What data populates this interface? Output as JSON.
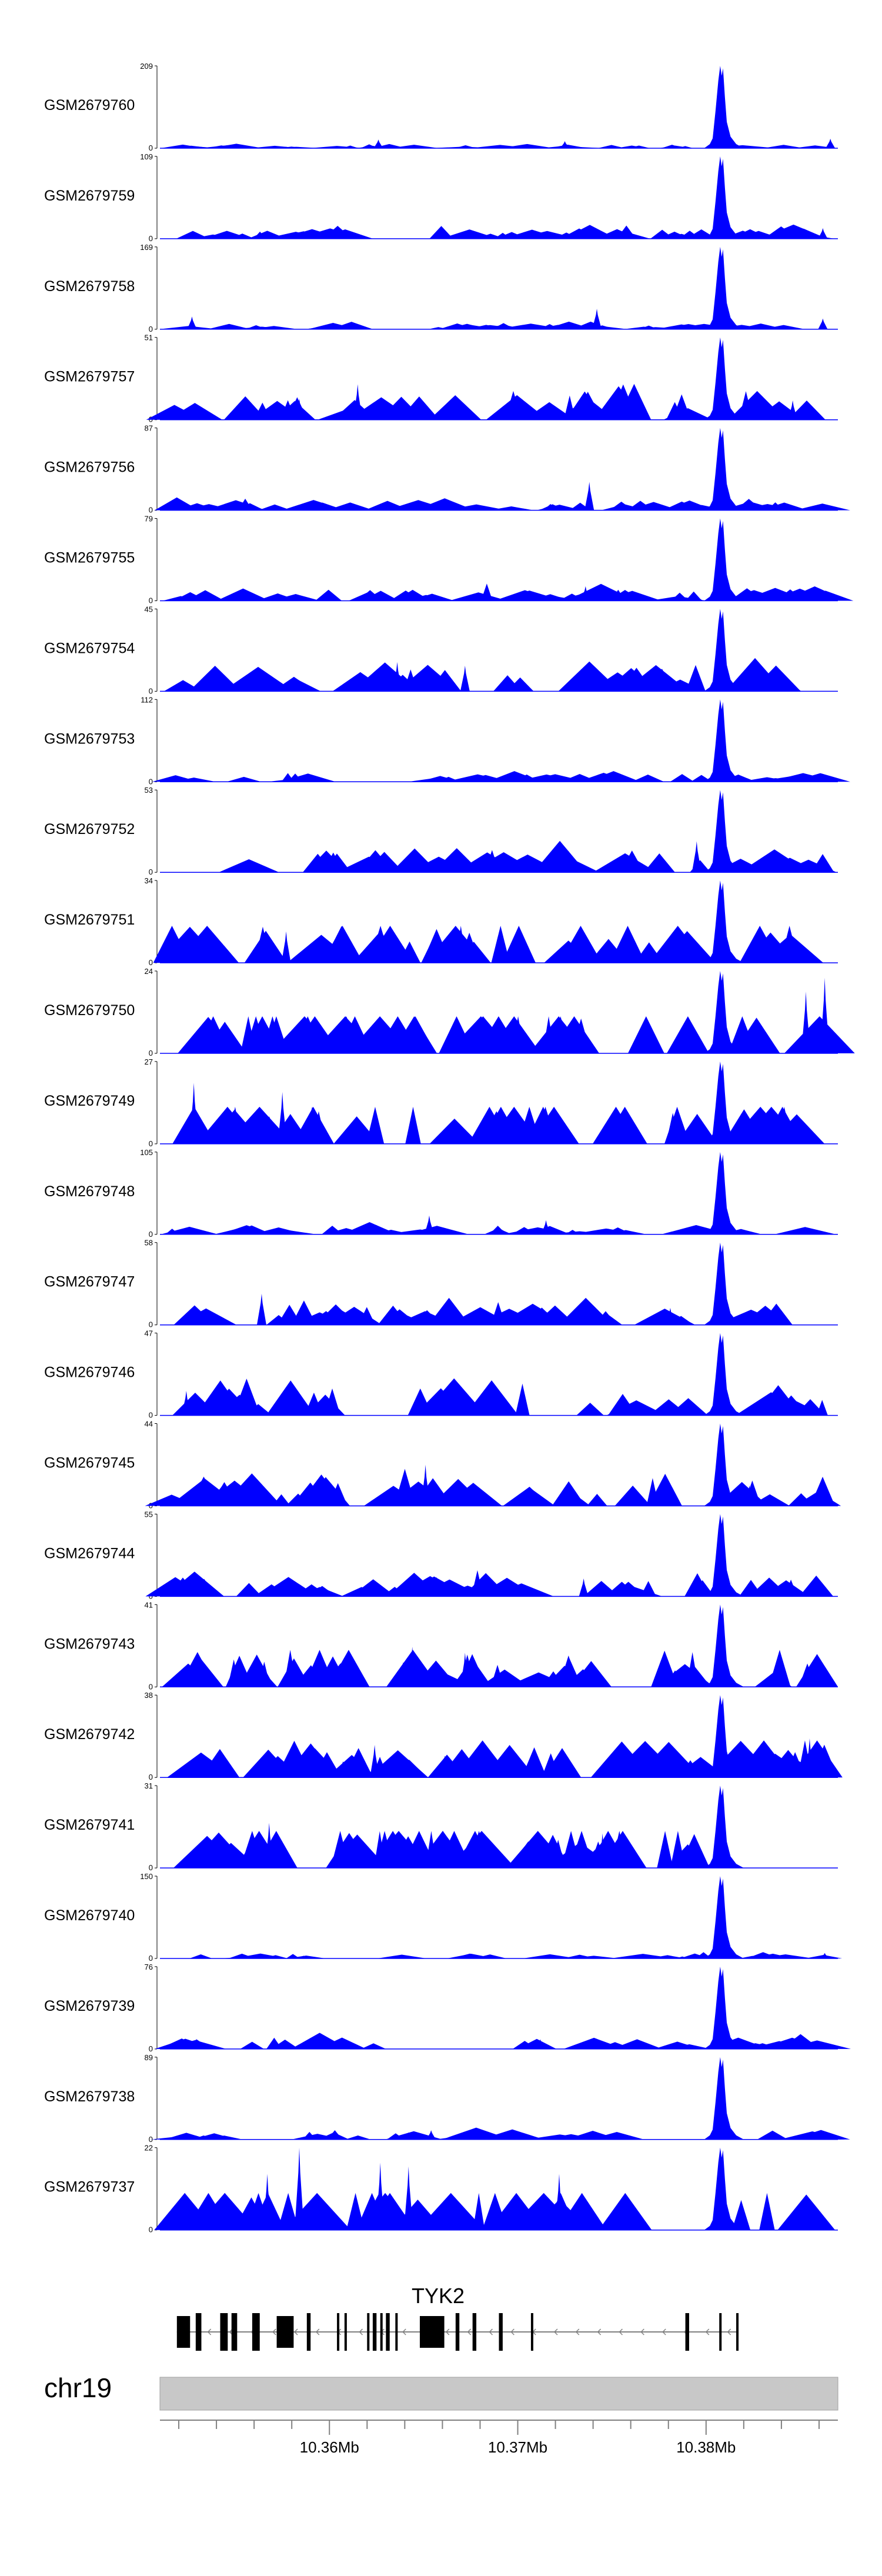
{
  "chart_data": {
    "type": "area",
    "title": "",
    "chromosome": "chr19",
    "gene": "TYK2",
    "xlim": [
      10.351,
      10.387
    ],
    "x_ticks": [
      10.352,
      10.354,
      10.356,
      10.358,
      10.36,
      10.362,
      10.364,
      10.366,
      10.368,
      10.37,
      10.372,
      10.374,
      10.376,
      10.378,
      10.38,
      10.382,
      10.384,
      10.386
    ],
    "x_tick_labels": [
      {
        "value": 10.36,
        "label": "10.36Mb"
      },
      {
        "value": 10.37,
        "label": "10.37Mb"
      },
      {
        "value": 10.38,
        "label": "10.38Mb"
      }
    ],
    "peak_position": 10.3808,
    "colors": {
      "signal": "#0000ff",
      "axis": "#000000",
      "ideogram": "#c8c8c8",
      "gene": "#000000",
      "intron": "#808080"
    },
    "tracks": [
      {
        "name": "GSM2679760",
        "ymax": "209",
        "ymin": "0",
        "peak": 209,
        "bg": [
          3,
          9
        ],
        "bumps": [
          [
            10.3626,
            22
          ],
          [
            10.3725,
            18
          ],
          [
            10.3866,
            24
          ]
        ]
      },
      {
        "name": "GSM2679759",
        "ymax": "109",
        "ymin": "0",
        "peak": 109,
        "bg": [
          5,
          14
        ],
        "bumps": [
          [
            10.3738,
            16
          ],
          [
            10.3862,
            14
          ]
        ]
      },
      {
        "name": "GSM2679758",
        "ymax": "169",
        "ymin": "0",
        "peak": 169,
        "bg": [
          4,
          12
        ],
        "bumps": [
          [
            10.3527,
            26
          ],
          [
            10.3742,
            42
          ],
          [
            10.3862,
            22
          ]
        ]
      },
      {
        "name": "GSM2679757",
        "ymax": "51",
        "ymin": "0",
        "peak": 51,
        "bg": [
          6,
          18
        ],
        "bumps": [
          [
            10.3584,
            13
          ],
          [
            10.3615,
            22
          ],
          [
            10.3846,
            12
          ]
        ]
      },
      {
        "name": "GSM2679756",
        "ymax": "87",
        "ymin": "0",
        "peak": 87,
        "bg": [
          4,
          13
        ],
        "bumps": [
          [
            10.3738,
            30
          ]
        ]
      },
      {
        "name": "GSM2679755",
        "ymax": "79",
        "ymin": "0",
        "peak": 79,
        "bg": [
          4,
          12
        ],
        "bumps": [
          [
            10.3736,
            14
          ]
        ]
      },
      {
        "name": "GSM2679754",
        "ymax": "45",
        "ymin": "0",
        "peak": 45,
        "bg": [
          6,
          15
        ],
        "bumps": [
          [
            10.3636,
            16
          ],
          [
            10.3672,
            14
          ]
        ]
      },
      {
        "name": "GSM2679753",
        "ymax": "112",
        "ymin": "0",
        "peak": 112,
        "bg": [
          4,
          12
        ],
        "bumps": [
          [
            10.3733,
            10
          ]
        ]
      },
      {
        "name": "GSM2679752",
        "ymax": "53",
        "ymin": "0",
        "peak": 53,
        "bg": [
          6,
          15
        ],
        "bumps": [
          [
            10.3727,
            14
          ],
          [
            10.3795,
            20
          ]
        ]
      },
      {
        "name": "GSM2679751",
        "ymax": "34",
        "ymin": "0",
        "peak": 34,
        "bg": [
          8,
          19
        ],
        "bumps": [
          [
            10.3577,
            13
          ],
          [
            10.3833,
            9
          ]
        ]
      },
      {
        "name": "GSM2679750",
        "ymax": "24",
        "ymin": "0",
        "peak": 24,
        "bg": [
          8,
          22
        ],
        "bumps": [
          [
            10.3863,
            22
          ],
          [
            10.3853,
            18
          ]
        ]
      },
      {
        "name": "GSM2679749",
        "ymax": "27",
        "ymin": "0",
        "peak": 27,
        "bg": [
          8,
          22
        ],
        "bumps": [
          [
            10.3528,
            20
          ],
          [
            10.3575,
            17
          ]
        ]
      },
      {
        "name": "GSM2679748",
        "ymax": "105",
        "ymin": "0",
        "peak": 105,
        "bg": [
          4,
          12
        ],
        "bumps": [
          [
            10.3653,
            24
          ],
          [
            10.3715,
            18
          ]
        ]
      },
      {
        "name": "GSM2679747",
        "ymax": "58",
        "ymin": "0",
        "peak": 58,
        "bg": [
          6,
          15
        ],
        "bumps": [
          [
            10.3564,
            22
          ],
          [
            10.3781,
            12
          ]
        ]
      },
      {
        "name": "GSM2679746",
        "ymax": "47",
        "ymin": "0",
        "peak": 47,
        "bg": [
          6,
          16
        ],
        "bumps": [
          [
            10.3524,
            14
          ],
          [
            10.3558,
            13
          ]
        ]
      },
      {
        "name": "GSM2679745",
        "ymax": "44",
        "ymin": "0",
        "peak": 44,
        "bg": [
          6,
          16
        ],
        "bumps": [
          [
            10.3651,
            22
          ],
          [
            10.3823,
            11
          ]
        ]
      },
      {
        "name": "GSM2679744",
        "ymax": "55",
        "ymin": "0",
        "peak": 55,
        "bg": [
          6,
          14
        ],
        "bumps": [
          [
            10.3657,
            13
          ],
          [
            10.3735,
            12
          ]
        ]
      },
      {
        "name": "GSM2679743",
        "ymax": "41",
        "ymin": "0",
        "peak": 41,
        "bg": [
          7,
          18
        ],
        "bumps": [
          [
            10.3644,
            20
          ],
          [
            10.3672,
            17
          ]
        ]
      },
      {
        "name": "GSM2679742",
        "ymax": "38",
        "ymin": "0",
        "peak": 38,
        "bg": [
          7,
          18
        ],
        "bumps": [
          [
            10.3855,
            18
          ],
          [
            10.3624,
            15
          ]
        ]
      },
      {
        "name": "GSM2679741",
        "ymax": "31",
        "ymin": "0",
        "peak": 31,
        "bg": [
          8,
          20
        ],
        "bumps": [
          [
            10.3568,
            17
          ],
          [
            10.3745,
            13
          ]
        ]
      },
      {
        "name": "GSM2679740",
        "ymax": "150",
        "ymin": "0",
        "peak": 150,
        "bg": [
          3,
          9
        ],
        "bumps": [
          [
            10.3863,
            10
          ]
        ]
      },
      {
        "name": "GSM2679739",
        "ymax": "76",
        "ymin": "0",
        "peak": 76,
        "bg": [
          4,
          11
        ],
        "bumps": [
          [
            10.3712,
            9
          ]
        ]
      },
      {
        "name": "GSM2679738",
        "ymax": "89",
        "ymin": "0",
        "peak": 89,
        "bg": [
          4,
          11
        ],
        "bumps": [
          [
            10.3654,
            10
          ]
        ]
      },
      {
        "name": "GSM2679737",
        "ymax": "22",
        "ymin": "0",
        "peak": 22,
        "bg": [
          8,
          20
        ],
        "bumps": [
          [
            10.3584,
            22
          ],
          [
            10.3567,
            15
          ],
          [
            10.3627,
            18
          ],
          [
            10.3642,
            17
          ],
          [
            10.3722,
            15
          ]
        ]
      }
    ],
    "gene_model": {
      "exons": [
        [
          10.3519,
          10.3526
        ],
        [
          10.3529,
          10.3532
        ],
        [
          10.3542,
          10.3546
        ],
        [
          10.3548,
          10.3551
        ],
        [
          10.3559,
          10.3563
        ],
        [
          10.3572,
          10.3581
        ],
        [
          10.3588,
          10.359
        ],
        [
          10.3604,
          10.3605
        ],
        [
          10.3608,
          10.3609
        ],
        [
          10.362,
          10.3621
        ],
        [
          10.3623,
          10.3625
        ],
        [
          10.3627,
          10.3628
        ],
        [
          10.363,
          10.3632
        ],
        [
          10.3635,
          10.3636
        ],
        [
          10.3648,
          10.3661
        ],
        [
          10.3667,
          10.3669
        ],
        [
          10.3676,
          10.3678
        ],
        [
          10.369,
          10.3692
        ],
        [
          10.3707,
          10.3708
        ],
        [
          10.3789,
          10.3791
        ],
        [
          10.3807,
          10.3808
        ],
        [
          10.3816,
          10.3817
        ]
      ],
      "tx_start": 10.3519,
      "tx_end": 10.3817,
      "strand": "-"
    }
  }
}
